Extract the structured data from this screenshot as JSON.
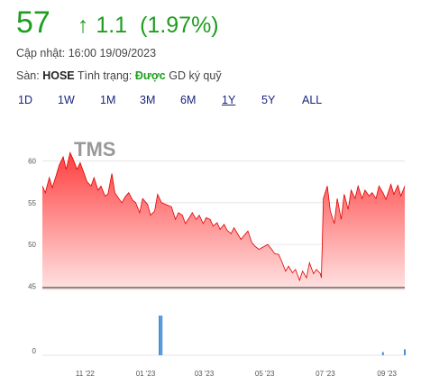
{
  "quote": {
    "price": "57",
    "arrow": "↑",
    "change": "1.1",
    "change_pct": "(1.97%)",
    "update_label": "Cập nhật:",
    "update_time": "16:00 19/09/2023",
    "exchange_label": "Sàn:",
    "exchange": "HOSE",
    "status_label": "Tình trạng:",
    "status_value": "Được",
    "status_suffix": "GD ký quỹ"
  },
  "ranges": [
    {
      "label": "1D",
      "active": false
    },
    {
      "label": "1W",
      "active": false
    },
    {
      "label": "1M",
      "active": false
    },
    {
      "label": "3M",
      "active": false
    },
    {
      "label": "6M",
      "active": false
    },
    {
      "label": "1Y",
      "active": true
    },
    {
      "label": "5Y",
      "active": false
    },
    {
      "label": "ALL",
      "active": false
    }
  ],
  "colors": {
    "up": "#1e9e1e",
    "price_fill_top": "#ff3333",
    "price_fill_bottom": "#ffe0e0",
    "price_line": "#e00000",
    "volume_bar": "#4a90d9",
    "baseline": "#888888"
  },
  "chart_data": {
    "type": "area",
    "ticker": "TMS",
    "price_y_ticks": [
      60,
      55,
      50,
      45
    ],
    "price_ylim": [
      44.5,
      62
    ],
    "volume_y_ticks": [
      0
    ],
    "x_ticks": [
      "11 '22",
      "01 '23",
      "03 '23",
      "05 '23",
      "07 '23",
      "09 '23"
    ],
    "x_range": [
      "2022-09-19",
      "2023-09-19"
    ],
    "x_tick_dates": [
      "2022-11-01",
      "2023-01-01",
      "2023-03-01",
      "2023-05-01",
      "2023-07-01",
      "2023-09-01"
    ],
    "price": {
      "dates": [
        "2022-09-19",
        "2022-09-22",
        "2022-09-26",
        "2022-09-29",
        "2022-10-03",
        "2022-10-06",
        "2022-10-10",
        "2022-10-13",
        "2022-10-17",
        "2022-10-20",
        "2022-10-24",
        "2022-10-27",
        "2022-10-31",
        "2022-11-03",
        "2022-11-07",
        "2022-11-10",
        "2022-11-14",
        "2022-11-17",
        "2022-11-21",
        "2022-11-24",
        "2022-11-28",
        "2022-12-01",
        "2022-12-05",
        "2022-12-08",
        "2022-12-12",
        "2022-12-15",
        "2022-12-19",
        "2022-12-22",
        "2022-12-26",
        "2022-12-29",
        "2023-01-03",
        "2023-01-06",
        "2023-01-10",
        "2023-01-13",
        "2023-01-17",
        "2023-01-27",
        "2023-01-31",
        "2023-02-03",
        "2023-02-07",
        "2023-02-10",
        "2023-02-14",
        "2023-02-17",
        "2023-02-21",
        "2023-02-24",
        "2023-02-28",
        "2023-03-03",
        "2023-03-07",
        "2023-03-10",
        "2023-03-14",
        "2023-03-17",
        "2023-03-21",
        "2023-03-24",
        "2023-03-28",
        "2023-03-31",
        "2023-04-04",
        "2023-04-07",
        "2023-04-11",
        "2023-04-14",
        "2023-04-18",
        "2023-04-21",
        "2023-04-25",
        "2023-05-04",
        "2023-05-08",
        "2023-05-11",
        "2023-05-15",
        "2023-05-18",
        "2023-05-22",
        "2023-05-25",
        "2023-05-29",
        "2023-06-01",
        "2023-06-05",
        "2023-06-08",
        "2023-06-12",
        "2023-06-15",
        "2023-06-19",
        "2023-06-22",
        "2023-06-26",
        "2023-06-27",
        "2023-06-29",
        "2023-07-03",
        "2023-07-06",
        "2023-07-10",
        "2023-07-13",
        "2023-07-17",
        "2023-07-20",
        "2023-07-24",
        "2023-07-27",
        "2023-07-31",
        "2023-08-03",
        "2023-08-07",
        "2023-08-10",
        "2023-08-14",
        "2023-08-17",
        "2023-08-21",
        "2023-08-24",
        "2023-08-28",
        "2023-08-31",
        "2023-09-05",
        "2023-09-08",
        "2023-09-12",
        "2023-09-15",
        "2023-09-19"
      ],
      "values": [
        57.0,
        56.2,
        58.0,
        56.8,
        58.3,
        59.5,
        60.5,
        59.0,
        61.0,
        60.2,
        59.0,
        59.8,
        58.5,
        57.5,
        57.0,
        58.0,
        56.5,
        57.0,
        55.8,
        56.0,
        58.5,
        56.2,
        55.5,
        55.0,
        55.8,
        56.2,
        55.3,
        55.0,
        53.8,
        55.5,
        54.8,
        53.5,
        54.0,
        56.0,
        55.0,
        54.5,
        53.0,
        53.8,
        53.5,
        52.5,
        53.2,
        53.8,
        53.0,
        53.5,
        52.5,
        53.2,
        53.0,
        52.2,
        52.6,
        51.8,
        52.4,
        51.7,
        51.3,
        52.0,
        51.2,
        50.6,
        51.2,
        51.6,
        50.2,
        49.8,
        49.4,
        50.0,
        49.4,
        48.9,
        48.8,
        48.0,
        46.8,
        47.4,
        46.6,
        47.0,
        45.7,
        46.8,
        46.0,
        47.8,
        46.5,
        47.0,
        46.5,
        46.0,
        55.5,
        57.0,
        54.0,
        52.5,
        55.5,
        53.0,
        56.0,
        54.2,
        56.5,
        55.5,
        57.0,
        55.5,
        56.5,
        55.8,
        56.2,
        55.5,
        57.0,
        56.2,
        55.4,
        57.2,
        56.0,
        57.1,
        55.8,
        57.0
      ]
    },
    "volume": {
      "dates": [
        "2023-01-15",
        "2023-01-17",
        "2023-08-28",
        "2023-09-19"
      ],
      "values": [
        1.0,
        1.0,
        0.08,
        0.15
      ]
    }
  }
}
